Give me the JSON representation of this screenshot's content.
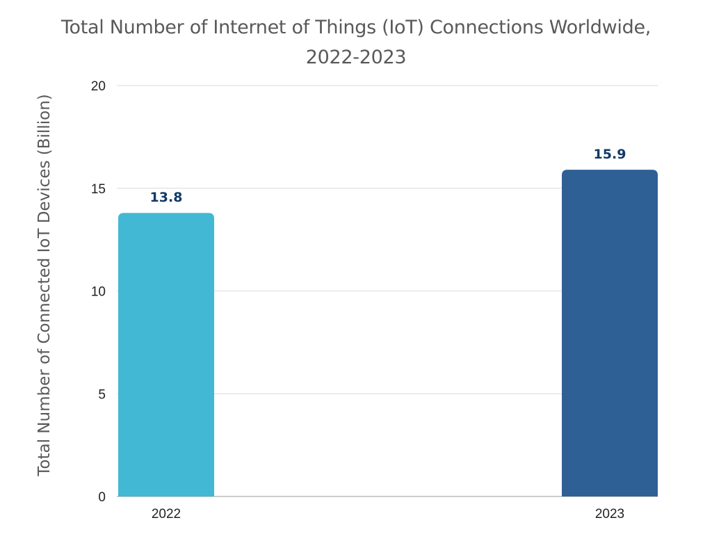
{
  "chart_data": {
    "type": "bar",
    "title_line1": "Total Number of Internet of Things (IoT) Connections Worldwide,",
    "title_line2": "2022-2023",
    "xlabel": "",
    "ylabel": "Total Number of Connected IoT Devices (Billion)",
    "categories": [
      "2022",
      "2023"
    ],
    "values": [
      13.8,
      15.9
    ],
    "data_labels": [
      "13.8",
      "15.9"
    ],
    "colors": [
      "#42b8d4",
      "#2e6096"
    ],
    "ylim": [
      0,
      20
    ],
    "yticks": [
      "0",
      "5",
      "10",
      "15",
      "20"
    ],
    "grid": true,
    "legend": "none"
  }
}
